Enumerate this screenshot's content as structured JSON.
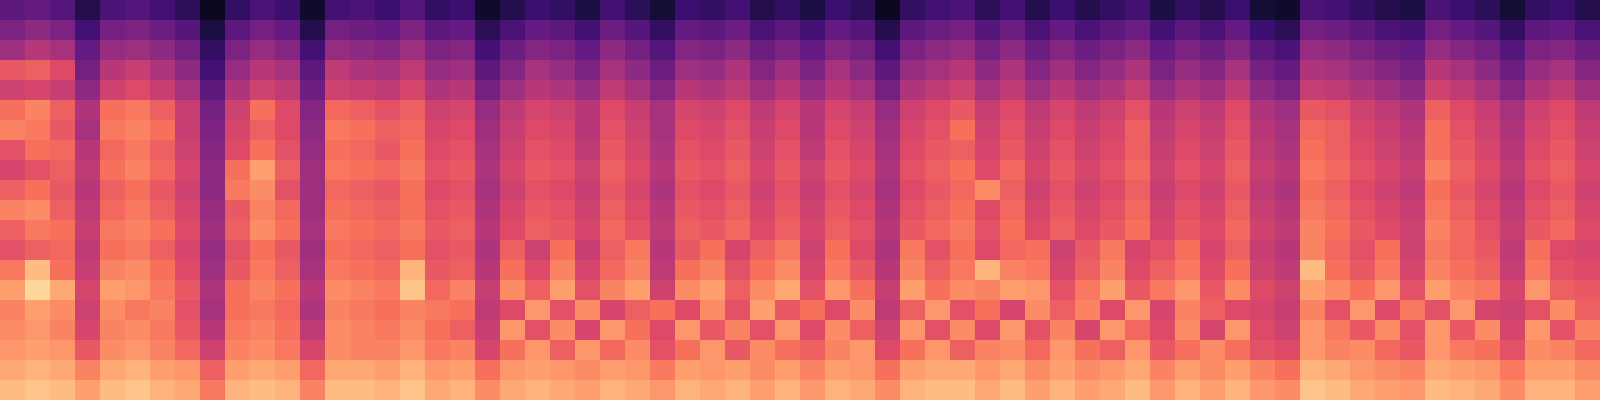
{
  "chart_data": {
    "type": "heatmap",
    "color": "magma",
    "color_range": [
      0,
      100
    ],
    "tick_labels": false,
    "cells": [
      [
        86,
        88,
        86,
        80,
        86,
        88,
        84,
        82,
        72,
        84,
        86,
        84,
        74,
        86,
        86,
        84,
        88,
        82,
        84,
        76,
        82,
        84,
        82,
        80,
        84,
        82,
        78,
        84,
        82,
        84,
        80,
        84,
        78,
        84,
        82,
        76,
        84,
        86,
        86,
        82,
        86,
        80,
        84,
        80,
        82,
        86,
        78,
        84,
        80,
        84,
        78,
        76,
        88,
        86,
        82,
        80,
        78,
        86,
        84,
        82,
        76,
        84,
        84,
        80
      ],
      [
        82,
        84,
        82,
        74,
        82,
        84,
        80,
        78,
        66,
        80,
        82,
        80,
        68,
        82,
        82,
        80,
        84,
        78,
        80,
        70,
        78,
        80,
        78,
        76,
        80,
        78,
        72,
        80,
        78,
        80,
        76,
        80,
        74,
        80,
        78,
        70,
        80,
        82,
        82,
        78,
        82,
        76,
        80,
        76,
        78,
        82,
        74,
        80,
        76,
        80,
        74,
        70,
        84,
        82,
        78,
        76,
        74,
        82,
        80,
        78,
        72,
        80,
        80,
        76
      ],
      [
        78,
        80,
        78,
        64,
        76,
        78,
        74,
        68,
        56,
        74,
        76,
        72,
        58,
        76,
        74,
        74,
        78,
        72,
        74,
        58,
        70,
        78,
        66,
        78,
        68,
        76,
        62,
        70,
        78,
        64,
        76,
        70,
        66,
        74,
        78,
        60,
        70,
        78,
        66,
        74,
        76,
        68,
        78,
        70,
        66,
        78,
        64,
        70,
        76,
        70,
        62,
        60,
        78,
        74,
        76,
        68,
        64,
        78,
        72,
        70,
        62,
        76,
        74,
        68
      ],
      [
        76,
        78,
        74,
        58,
        74,
        76,
        72,
        64,
        50,
        72,
        74,
        70,
        52,
        76,
        74,
        72,
        76,
        70,
        66,
        54,
        78,
        62,
        76,
        58,
        78,
        70,
        60,
        78,
        64,
        74,
        62,
        78,
        60,
        76,
        66,
        56,
        78,
        62,
        76,
        60,
        78,
        62,
        74,
        58,
        78,
        68,
        60,
        76,
        58,
        78,
        60,
        56,
        78,
        72,
        64,
        76,
        62,
        78,
        64,
        76,
        58,
        78,
        62,
        74
      ],
      [
        74,
        80,
        76,
        56,
        76,
        72,
        74,
        62,
        46,
        70,
        72,
        68,
        48,
        74,
        72,
        70,
        74,
        72,
        70,
        52,
        60,
        78,
        62,
        76,
        58,
        66,
        70,
        60,
        76,
        62,
        80,
        64,
        70,
        60,
        76,
        52,
        66,
        78,
        62,
        70,
        58,
        76,
        66,
        74,
        60,
        78,
        58,
        74,
        66,
        60,
        58,
        54,
        74,
        62,
        78,
        60,
        72,
        62,
        78,
        58,
        56,
        62,
        76,
        66
      ],
      [
        80,
        92,
        82,
        58,
        80,
        78,
        72,
        64,
        48,
        70,
        74,
        70,
        50,
        76,
        74,
        72,
        88,
        68,
        74,
        54,
        76,
        66,
        80,
        62,
        74,
        80,
        56,
        76,
        80,
        66,
        76,
        82,
        62,
        78,
        70,
        54,
        80,
        70,
        76,
        74,
        80,
        78,
        62,
        72,
        80,
        64,
        72,
        78,
        64,
        76,
        60,
        56,
        80,
        76,
        70,
        78,
        62,
        80,
        74,
        72,
        58,
        78,
        66,
        64
      ],
      [
        72,
        86,
        70,
        54,
        74,
        76,
        70,
        60,
        44,
        64,
        72,
        66,
        46,
        72,
        70,
        68,
        84,
        64,
        66,
        50,
        70,
        60,
        74,
        58,
        68,
        74,
        52,
        70,
        74,
        62,
        70,
        76,
        58,
        72,
        64,
        50,
        74,
        66,
        72,
        84,
        74,
        72,
        58,
        66,
        74,
        60,
        66,
        72,
        60,
        70,
        56,
        52,
        86,
        70,
        64,
        72,
        58,
        74,
        70,
        66,
        54,
        72,
        62,
        60
      ],
      [
        62,
        66,
        68,
        52,
        70,
        72,
        66,
        58,
        42,
        62,
        70,
        64,
        44,
        70,
        68,
        66,
        70,
        62,
        64,
        48,
        66,
        56,
        70,
        54,
        66,
        72,
        50,
        64,
        70,
        58,
        66,
        72,
        56,
        70,
        60,
        48,
        72,
        62,
        70,
        60,
        68,
        70,
        56,
        64,
        72,
        58,
        62,
        70,
        58,
        66,
        54,
        50,
        74,
        68,
        62,
        70,
        56,
        72,
        68,
        64,
        52,
        70,
        60,
        58
      ],
      [
        66,
        72,
        70,
        54,
        72,
        74,
        70,
        60,
        44,
        66,
        76,
        70,
        46,
        72,
        70,
        68,
        72,
        64,
        66,
        50,
        60,
        66,
        64,
        58,
        68,
        62,
        52,
        66,
        64,
        68,
        60,
        66,
        58,
        66,
        62,
        50,
        64,
        68,
        72,
        62,
        70,
        60,
        66,
        60,
        64,
        70,
        58,
        64,
        60,
        68,
        56,
        52,
        74,
        70,
        64,
        60,
        56,
        74,
        68,
        62,
        54,
        64,
        68,
        60
      ],
      [
        74,
        76,
        66,
        52,
        68,
        72,
        66,
        58,
        42,
        64,
        74,
        68,
        44,
        70,
        68,
        66,
        70,
        62,
        64,
        48,
        58,
        64,
        62,
        56,
        66,
        60,
        50,
        64,
        62,
        66,
        58,
        64,
        56,
        64,
        60,
        48,
        62,
        66,
        70,
        60,
        68,
        58,
        64,
        58,
        62,
        68,
        56,
        62,
        58,
        66,
        54,
        50,
        72,
        68,
        62,
        58,
        54,
        72,
        66,
        60,
        52,
        62,
        66,
        58
      ],
      [
        66,
        70,
        64,
        50,
        66,
        70,
        64,
        56,
        40,
        72,
        76,
        62,
        44,
        68,
        66,
        64,
        70,
        60,
        62,
        46,
        56,
        62,
        60,
        54,
        64,
        58,
        48,
        62,
        60,
        64,
        56,
        62,
        54,
        62,
        58,
        46,
        60,
        64,
        68,
        76,
        66,
        56,
        62,
        56,
        60,
        66,
        54,
        60,
        56,
        64,
        52,
        48,
        70,
        66,
        60,
        56,
        52,
        70,
        64,
        58,
        50,
        60,
        64,
        56
      ],
      [
        58,
        62,
        66,
        52,
        70,
        74,
        68,
        58,
        40,
        70,
        80,
        66,
        44,
        72,
        70,
        68,
        72,
        62,
        64,
        48,
        58,
        64,
        62,
        56,
        66,
        60,
        50,
        64,
        62,
        66,
        58,
        64,
        56,
        64,
        60,
        48,
        62,
        66,
        70,
        60,
        68,
        58,
        64,
        58,
        62,
        68,
        56,
        62,
        58,
        66,
        54,
        50,
        72,
        68,
        62,
        58,
        54,
        74,
        66,
        60,
        52,
        62,
        66,
        58
      ],
      [
        62,
        70,
        68,
        50,
        68,
        72,
        66,
        56,
        38,
        60,
        70,
        62,
        42,
        70,
        68,
        64,
        70,
        60,
        62,
        46,
        56,
        62,
        60,
        52,
        64,
        58,
        48,
        62,
        60,
        64,
        56,
        62,
        52,
        62,
        58,
        46,
        60,
        64,
        66,
        58,
        64,
        56,
        62,
        56,
        60,
        66,
        54,
        60,
        56,
        64,
        52,
        48,
        70,
        66,
        60,
        56,
        52,
        70,
        64,
        58,
        50,
        60,
        64,
        56
      ],
      [
        74,
        72,
        64,
        46,
        72,
        74,
        70,
        54,
        36,
        58,
        66,
        60,
        40,
        72,
        70,
        66,
        68,
        58,
        60,
        44,
        54,
        60,
        58,
        50,
        62,
        56,
        46,
        60,
        58,
        62,
        54,
        60,
        50,
        60,
        56,
        44,
        58,
        62,
        70,
        56,
        62,
        54,
        60,
        54,
        58,
        66,
        52,
        58,
        54,
        62,
        50,
        46,
        68,
        66,
        58,
        54,
        50,
        70,
        62,
        56,
        48,
        58,
        62,
        54
      ],
      [
        70,
        74,
        66,
        48,
        70,
        72,
        66,
        54,
        34,
        56,
        70,
        60,
        38,
        68,
        66,
        62,
        66,
        56,
        58,
        42,
        52,
        58,
        56,
        50,
        60,
        54,
        46,
        58,
        56,
        60,
        52,
        58,
        50,
        58,
        54,
        42,
        56,
        60,
        64,
        54,
        60,
        52,
        58,
        52,
        56,
        62,
        50,
        56,
        52,
        60,
        48,
        44,
        64,
        62,
        56,
        52,
        48,
        66,
        60,
        54,
        46,
        56,
        60,
        52
      ],
      [
        56,
        58,
        54,
        40,
        56,
        60,
        54,
        46,
        28,
        48,
        56,
        52,
        32,
        56,
        54,
        52,
        58,
        48,
        50,
        34,
        44,
        50,
        48,
        42,
        52,
        46,
        38,
        50,
        48,
        52,
        44,
        50,
        42,
        50,
        46,
        34,
        48,
        52,
        56,
        46,
        52,
        44,
        50,
        44,
        48,
        54,
        42,
        48,
        44,
        52,
        40,
        36,
        54,
        52,
        48,
        44,
        40,
        56,
        52,
        46,
        38,
        48,
        52,
        44
      ],
      [
        64,
        66,
        60,
        34,
        50,
        54,
        48,
        40,
        22,
        42,
        50,
        46,
        28,
        52,
        48,
        46,
        52,
        42,
        44,
        28,
        38,
        46,
        42,
        36,
        46,
        40,
        32,
        44,
        42,
        48,
        38,
        44,
        36,
        46,
        40,
        28,
        42,
        46,
        50,
        40,
        48,
        38,
        44,
        38,
        42,
        48,
        36,
        42,
        38,
        46,
        34,
        30,
        48,
        46,
        42,
        38,
        34,
        50,
        46,
        40,
        32,
        42,
        46,
        38
      ],
      [
        44,
        50,
        46,
        30,
        42,
        44,
        40,
        34,
        18,
        36,
        42,
        38,
        22,
        42,
        40,
        38,
        44,
        36,
        38,
        22,
        32,
        38,
        36,
        30,
        40,
        34,
        26,
        38,
        36,
        40,
        32,
        36,
        30,
        38,
        34,
        22,
        36,
        40,
        42,
        34,
        40,
        32,
        38,
        32,
        36,
        40,
        30,
        36,
        32,
        38,
        28,
        24,
        42,
        40,
        36,
        32,
        30,
        42,
        38,
        34,
        26,
        36,
        38,
        32
      ],
      [
        36,
        40,
        36,
        22,
        34,
        36,
        32,
        26,
        12,
        28,
        34,
        30,
        14,
        34,
        32,
        30,
        36,
        28,
        30,
        16,
        24,
        30,
        28,
        22,
        32,
        26,
        18,
        30,
        28,
        32,
        24,
        28,
        22,
        30,
        26,
        14,
        28,
        32,
        34,
        26,
        32,
        24,
        30,
        24,
        28,
        32,
        22,
        28,
        24,
        30,
        20,
        16,
        34,
        32,
        28,
        24,
        22,
        34,
        30,
        26,
        18,
        28,
        30,
        24
      ],
      [
        28,
        30,
        26,
        14,
        24,
        26,
        22,
        16,
        6,
        18,
        24,
        20,
        8,
        22,
        24,
        20,
        26,
        18,
        20,
        8,
        14,
        20,
        18,
        12,
        22,
        16,
        10,
        20,
        18,
        22,
        14,
        18,
        12,
        20,
        16,
        6,
        18,
        22,
        24,
        16,
        22,
        14,
        20,
        14,
        18,
        22,
        12,
        18,
        14,
        20,
        10,
        8,
        24,
        22,
        18,
        14,
        12,
        24,
        20,
        16,
        10,
        18,
        20,
        14
      ]
    ]
  }
}
